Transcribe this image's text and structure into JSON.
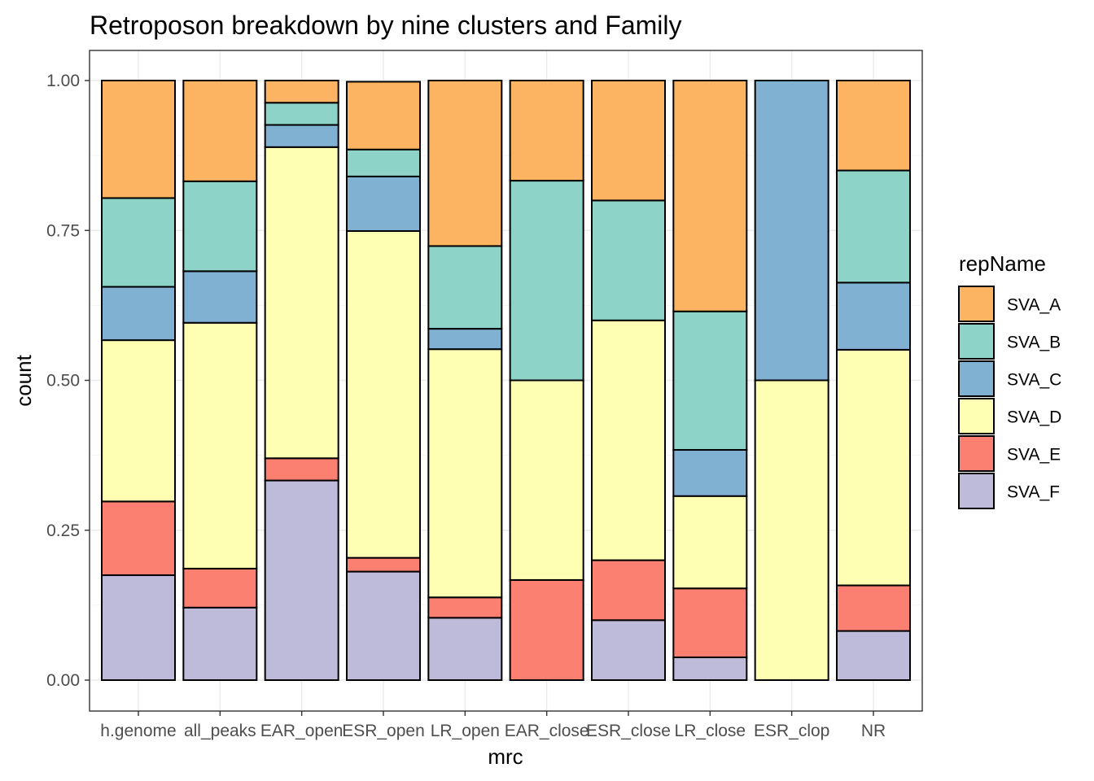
{
  "chart_data": {
    "type": "bar",
    "stacked": true,
    "title": "Retroposon breakdown by nine clusters and Family",
    "xlabel": "mrc",
    "ylabel": "count",
    "ylim": [
      0,
      1
    ],
    "y_ticks": [
      "0.00",
      "0.25",
      "0.50",
      "0.75",
      "1.00"
    ],
    "y_tick_values": [
      0,
      0.25,
      0.5,
      0.75,
      1.0
    ],
    "grid": true,
    "legend_title": "repName",
    "legend_position": "right",
    "categories": [
      "h.genome",
      "all_peaks",
      "EAR_open",
      "ESR_open",
      "LR_open",
      "EAR_close",
      "ESR_close",
      "LR_close",
      "ESR_clop",
      "NR"
    ],
    "stack_order_bottom_to_top": [
      "SVA_F",
      "SVA_E",
      "SVA_D",
      "SVA_C",
      "SVA_B",
      "SVA_A"
    ],
    "series": [
      {
        "name": "SVA_A",
        "color": "#FDB462",
        "values": [
          0.196,
          0.168,
          0.037,
          0.113,
          0.276,
          0.167,
          0.2,
          0.385,
          0.0,
          0.15
        ]
      },
      {
        "name": "SVA_B",
        "color": "#8DD3C7",
        "values": [
          0.148,
          0.15,
          0.037,
          0.045,
          0.138,
          0.333,
          0.2,
          0.231,
          0.0,
          0.187
        ]
      },
      {
        "name": "SVA_C",
        "color": "#80B1D3",
        "values": [
          0.089,
          0.086,
          0.037,
          0.091,
          0.034,
          0.0,
          0.0,
          0.077,
          0.5,
          0.112
        ]
      },
      {
        "name": "SVA_D",
        "color": "#FFFFB3",
        "values": [
          0.269,
          0.41,
          0.519,
          0.545,
          0.414,
          0.333,
          0.4,
          0.154,
          0.5,
          0.393
        ]
      },
      {
        "name": "SVA_E",
        "color": "#FB8072",
        "values": [
          0.123,
          0.065,
          0.037,
          0.023,
          0.034,
          0.167,
          0.1,
          0.115,
          0.0,
          0.076
        ]
      },
      {
        "name": "SVA_F",
        "color": "#BEBADA",
        "values": [
          0.175,
          0.121,
          0.333,
          0.181,
          0.104,
          0.0,
          0.1,
          0.038,
          0.0,
          0.082
        ]
      }
    ]
  }
}
